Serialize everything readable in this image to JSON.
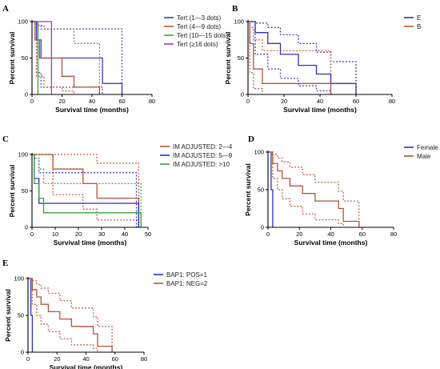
{
  "chart_data": [
    {
      "type": "line",
      "panel": "A",
      "xlabel": "Survival time (months)",
      "ylabel": "Percent survival",
      "xlim": [
        0,
        80
      ],
      "ylim": [
        0,
        100
      ],
      "xticks": [
        "0",
        "20",
        "40",
        "60",
        "80"
      ],
      "yticks": [
        "0",
        "50",
        "100"
      ],
      "legend_position": "right",
      "series": [
        {
          "name": "Tert (1—3 dots)",
          "color": "#3b3bc4",
          "step": [
            [
              0,
              100
            ],
            [
              3,
              75
            ],
            [
              6,
              50
            ],
            [
              47,
              50
            ],
            [
              47,
              15
            ],
            [
              60,
              15
            ],
            [
              60,
              0
            ]
          ],
          "ci": [
            [
              [
                0,
                100
              ],
              [
                3,
                95
              ],
              [
                6,
                90
              ],
              [
                47,
                90
              ],
              [
                60,
                55
              ],
              [
                60,
                0
              ]
            ],
            [
              [
                0,
                100
              ],
              [
                3,
                30
              ],
              [
                6,
                10
              ],
              [
                47,
                0
              ]
            ]
          ]
        },
        {
          "name": "Tert (4—9 dots)",
          "color": "#b5533c",
          "step": [
            [
              0,
              100
            ],
            [
              2,
              75
            ],
            [
              5,
              50
            ],
            [
              20,
              50
            ],
            [
              20,
              25
            ],
            [
              28,
              25
            ],
            [
              28,
              10
            ],
            [
              45,
              10
            ],
            [
              45,
              0
            ]
          ],
          "ci": [
            [
              [
                0,
                100
              ],
              [
                3,
                95
              ],
              [
                8,
                90
              ],
              [
                20,
                90
              ],
              [
                28,
                70
              ],
              [
                45,
                40
              ],
              [
                45,
                0
              ]
            ],
            [
              [
                0,
                100
              ],
              [
                3,
                25
              ],
              [
                8,
                10
              ],
              [
                20,
                5
              ],
              [
                28,
                0
              ]
            ]
          ]
        },
        {
          "name": "Tert (10—15 dots)",
          "color": "#3aa33a",
          "step": [
            [
              0,
              100
            ],
            [
              4,
              100
            ],
            [
              4,
              0
            ]
          ]
        },
        {
          "name": "Tert (≥16 dots)",
          "color": "#9b3bc4",
          "step": [
            [
              0,
              100
            ],
            [
              13,
              100
            ],
            [
              13,
              0
            ]
          ]
        }
      ]
    },
    {
      "type": "line",
      "panel": "B",
      "xlabel": "Survival time (months)",
      "ylabel": "Percent survival",
      "xlim": [
        0,
        80
      ],
      "ylim": [
        0,
        100
      ],
      "xticks": [
        "0",
        "20",
        "40",
        "60",
        "80"
      ],
      "yticks": [
        "0",
        "50",
        "100"
      ],
      "legend_position": "right",
      "series": [
        {
          "name": "E",
          "color": "#2f2fc0",
          "step": [
            [
              0,
              100
            ],
            [
              4,
              85
            ],
            [
              11,
              70
            ],
            [
              18,
              55
            ],
            [
              28,
              40
            ],
            [
              38,
              28
            ],
            [
              46,
              15
            ],
            [
              60,
              15
            ],
            [
              60,
              0
            ]
          ],
          "ci": [
            [
              [
                0,
                100
              ],
              [
                4,
                98
              ],
              [
                11,
                92
              ],
              [
                18,
                82
              ],
              [
                28,
                70
              ],
              [
                38,
                58
              ],
              [
                46,
                45
              ],
              [
                60,
                45
              ],
              [
                60,
                0
              ]
            ],
            [
              [
                0,
                100
              ],
              [
                4,
                55
              ],
              [
                11,
                35
              ],
              [
                18,
                22
              ],
              [
                28,
                12
              ],
              [
                38,
                5
              ],
              [
                46,
                0
              ]
            ]
          ]
        },
        {
          "name": "B",
          "color": "#b5533c",
          "step": [
            [
              0,
              100
            ],
            [
              1,
              70
            ],
            [
              3,
              35
            ],
            [
              8,
              15
            ],
            [
              46,
              15
            ],
            [
              46,
              0
            ]
          ],
          "ci": [
            [
              [
                0,
                100
              ],
              [
                1,
                92
              ],
              [
                3,
                75
              ],
              [
                8,
                60
              ],
              [
                46,
                60
              ],
              [
                46,
                0
              ]
            ],
            [
              [
                0,
                100
              ],
              [
                1,
                30
              ],
              [
                3,
                8
              ],
              [
                8,
                0
              ]
            ]
          ]
        }
      ]
    },
    {
      "type": "line",
      "panel": "C",
      "xlabel": "Survival time (months)",
      "ylabel": "Percent survival",
      "xlim": [
        0,
        50
      ],
      "ylim": [
        0,
        100
      ],
      "xticks": [
        "0",
        "10",
        "20",
        "30",
        "40",
        "50"
      ],
      "yticks": [
        "0",
        "50",
        "100"
      ],
      "legend_position": "right",
      "series": [
        {
          "name": "IM ADJUSTED: 2—4",
          "color": "#b5533c",
          "step": [
            [
              0,
              100
            ],
            [
              9,
              100
            ],
            [
              9,
              80
            ],
            [
              22,
              80
            ],
            [
              22,
              60
            ],
            [
              28,
              60
            ],
            [
              28,
              40
            ],
            [
              46,
              40
            ],
            [
              46,
              0
            ]
          ],
          "ci": [
            [
              [
                0,
                100
              ],
              [
                9,
                100
              ],
              [
                22,
                100
              ],
              [
                28,
                88
              ],
              [
                46,
                75
              ],
              [
                46,
                0
              ]
            ],
            [
              [
                0,
                100
              ],
              [
                9,
                45
              ],
              [
                22,
                25
              ],
              [
                28,
                10
              ],
              [
                46,
                0
              ]
            ]
          ]
        },
        {
          "name": "IM ADJUSTED: 5—9",
          "color": "#2f2fc0",
          "step": [
            [
              0,
              100
            ],
            [
              1,
              67
            ],
            [
              3,
              33
            ],
            [
              46,
              33
            ],
            [
              46,
              0
            ]
          ],
          "ci": [
            [
              [
                0,
                100
              ],
              [
                1,
                95
              ],
              [
                3,
                75
              ],
              [
                45,
                75
              ],
              [
                45,
                0
              ]
            ]
          ]
        },
        {
          "name": "IM ADJUSTED: >10",
          "color": "#3aa33a",
          "step": [
            [
              0,
              100
            ],
            [
              1,
              60
            ],
            [
              3,
              40
            ],
            [
              5,
              20
            ],
            [
              47,
              20
            ],
            [
              47,
              0
            ]
          ],
          "ci": [
            [
              [
                0,
                100
              ],
              [
                1,
                95
              ],
              [
                3,
                80
              ],
              [
                5,
                60
              ],
              [
                47,
                60
              ],
              [
                47,
                0
              ]
            ]
          ]
        }
      ]
    },
    {
      "type": "line",
      "panel": "D",
      "xlabel": "Survival time (months)",
      "ylabel": "Percent survival",
      "xlim": [
        0,
        80
      ],
      "ylim": [
        0,
        100
      ],
      "xticks": [
        "0",
        "20",
        "40",
        "60",
        "80"
      ],
      "yticks": [
        "0",
        "50",
        "100"
      ],
      "legend_position": "right",
      "series": [
        {
          "name": "Female",
          "color": "#2f2fc0",
          "step": [
            [
              0,
              100
            ],
            [
              2,
              100
            ],
            [
              2,
              50
            ],
            [
              3,
              50
            ],
            [
              3,
              0
            ]
          ]
        },
        {
          "name": "Male",
          "color": "#b5533c",
          "step": [
            [
              0,
              100
            ],
            [
              3,
              85
            ],
            [
              6,
              75
            ],
            [
              9,
              65
            ],
            [
              14,
              55
            ],
            [
              22,
              45
            ],
            [
              30,
              35
            ],
            [
              45,
              25
            ],
            [
              48,
              8
            ],
            [
              58,
              8
            ],
            [
              58,
              0
            ]
          ],
          "ci": [
            [
              [
                0,
                100
              ],
              [
                3,
                97
              ],
              [
                6,
                92
              ],
              [
                9,
                87
              ],
              [
                14,
                80
              ],
              [
                22,
                70
              ],
              [
                30,
                60
              ],
              [
                45,
                48
              ],
              [
                48,
                35
              ],
              [
                58,
                35
              ],
              [
                58,
                0
              ]
            ],
            [
              [
                0,
                100
              ],
              [
                3,
                65
              ],
              [
                6,
                50
              ],
              [
                9,
                38
              ],
              [
                14,
                28
              ],
              [
                22,
                18
              ],
              [
                30,
                10
              ],
              [
                45,
                5
              ],
              [
                48,
                0
              ]
            ]
          ]
        }
      ]
    },
    {
      "type": "line",
      "panel": "E",
      "xlabel": "Survival time (months)",
      "ylabel": "Percent survival",
      "xlim": [
        0,
        80
      ],
      "ylim": [
        0,
        100
      ],
      "xticks": [
        "0",
        "20",
        "40",
        "60",
        "80"
      ],
      "yticks": [
        "0",
        "50",
        "100"
      ],
      "legend_position": "right",
      "series": [
        {
          "name": "BAP1: POS=1",
          "color": "#2f2fc0",
          "step": [
            [
              0,
              100
            ],
            [
              2,
              100
            ],
            [
              2,
              50
            ],
            [
              3,
              50
            ],
            [
              3,
              0
            ]
          ]
        },
        {
          "name": "BAP1: NEG=2",
          "color": "#b5533c",
          "step": [
            [
              0,
              100
            ],
            [
              3,
              85
            ],
            [
              6,
              75
            ],
            [
              9,
              65
            ],
            [
              14,
              55
            ],
            [
              22,
              45
            ],
            [
              30,
              35
            ],
            [
              45,
              25
            ],
            [
              48,
              8
            ],
            [
              58,
              8
            ],
            [
              58,
              0
            ]
          ],
          "ci": [
            [
              [
                0,
                100
              ],
              [
                3,
                97
              ],
              [
                6,
                92
              ],
              [
                9,
                87
              ],
              [
                14,
                80
              ],
              [
                22,
                70
              ],
              [
                30,
                60
              ],
              [
                45,
                48
              ],
              [
                48,
                35
              ],
              [
                58,
                35
              ],
              [
                58,
                0
              ]
            ],
            [
              [
                0,
                100
              ],
              [
                3,
                65
              ],
              [
                6,
                50
              ],
              [
                9,
                38
              ],
              [
                14,
                28
              ],
              [
                22,
                18
              ],
              [
                30,
                10
              ],
              [
                45,
                5
              ],
              [
                48,
                0
              ]
            ]
          ]
        }
      ]
    }
  ]
}
